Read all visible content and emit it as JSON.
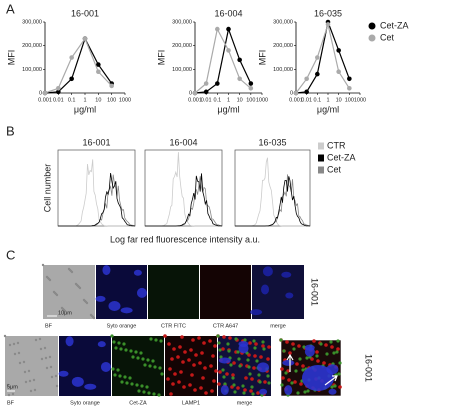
{
  "panel_labels": [
    "A",
    "B",
    "C"
  ],
  "chart_data": [
    {
      "type": "line",
      "title": "16-001",
      "xlabel": "μg/ml",
      "ylabel": "MFI",
      "xscale": "log",
      "x": [
        0.001,
        0.01,
        0.1,
        1,
        10,
        100
      ],
      "series": [
        {
          "color": "#000000",
          "values": [
            0,
            5000,
            60000,
            230000,
            120000,
            40000
          ]
        },
        {
          "color": "#aaaaaa",
          "values": [
            0,
            20000,
            150000,
            230000,
            90000,
            30000
          ]
        }
      ],
      "xlim": [
        0.001,
        1000
      ],
      "xticks": [
        0.001,
        0.01,
        0.1,
        1,
        10,
        100,
        1000
      ],
      "ylim": [
        0,
        300000
      ],
      "yticks": [
        0,
        {
          "value": 100000,
          "label": "100,000"
        },
        {
          "value": 200000,
          "label": "200,000"
        },
        {
          "value": 300000,
          "label": "300,000"
        }
      ]
    },
    {
      "type": "line",
      "title": "16-004",
      "xlabel": "μg/ml",
      "ylabel": "MFI",
      "xscale": "log",
      "x": [
        0.001,
        0.01,
        0.1,
        1,
        10,
        100
      ],
      "series": [
        {
          "color": "#000000",
          "values": [
            0,
            5000,
            40000,
            270000,
            140000,
            40000
          ]
        },
        {
          "color": "#aaaaaa",
          "values": [
            0,
            40000,
            270000,
            180000,
            60000,
            20000
          ]
        }
      ],
      "xlim": [
        0.001,
        1000
      ],
      "xticks": [
        0.001,
        0.01,
        0.1,
        1,
        10,
        100,
        1000
      ],
      "ylim": [
        0,
        300000
      ],
      "yticks": [
        0,
        {
          "value": 100000,
          "label": "100,000"
        },
        {
          "value": 200000,
          "label": "200,000"
        },
        {
          "value": 300000,
          "label": "300,000"
        }
      ]
    },
    {
      "type": "line",
      "title": "16-035",
      "xlabel": "μg/ml",
      "ylabel": "MFI",
      "xscale": "log",
      "legend": "right",
      "x": [
        0.001,
        0.01,
        0.1,
        1,
        10,
        100
      ],
      "series": [
        {
          "name": "Cet-ZA",
          "color": "#000000",
          "values": [
            0,
            5000,
            80000,
            300000,
            180000,
            60000
          ]
        },
        {
          "name": "Cet",
          "color": "#aaaaaa",
          "values": [
            0,
            60000,
            150000,
            290000,
            90000,
            20000
          ]
        }
      ],
      "xlim": [
        0.001,
        1000
      ],
      "xticks": [
        0.001,
        0.01,
        0.1,
        1,
        10,
        100,
        1000
      ],
      "ylim": [
        0,
        300000
      ],
      "yticks": [
        0,
        {
          "value": 100000,
          "label": "100,000"
        },
        {
          "value": 200000,
          "label": "200,000"
        },
        {
          "value": 300000,
          "label": "300,000"
        }
      ]
    }
  ],
  "panel_b": {
    "titles": [
      "16-001",
      "16-004",
      "16-035"
    ],
    "ylabel": "Cell number",
    "xlabel": "Log  far red fluorescence intensity a.u.",
    "legend": [
      {
        "name": "CTR",
        "color": "#cccccc"
      },
      {
        "name": "Cet-ZA",
        "color": "#000000"
      },
      {
        "name": "Cet",
        "color": "#888888"
      }
    ]
  },
  "panel_c": {
    "row1": {
      "labels": [
        "BF",
        "Syto orange",
        "CTR FITC",
        "CTR A647",
        "merge"
      ],
      "side_label": "16-001",
      "scale": "10μm"
    },
    "row2": {
      "labels": [
        "BF",
        "Syto orange",
        "Cet-ZA",
        "LAMP1",
        "merge"
      ],
      "side_label": "16-001",
      "scale": "5μm"
    }
  }
}
